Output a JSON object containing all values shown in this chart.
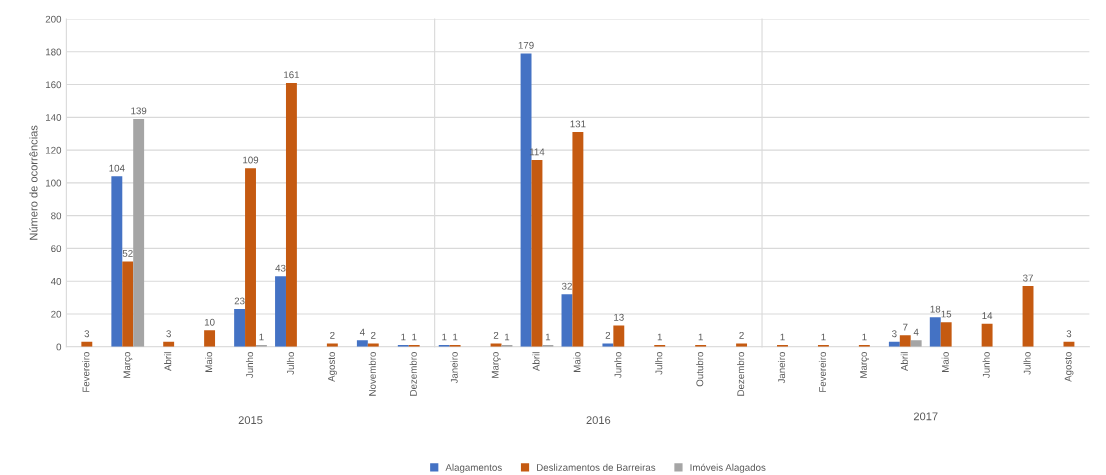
{
  "chart_data": [
    {
      "type": "bar",
      "ylabel": "Número de ocorrências",
      "xlabel": "2015",
      "categories": [
        "Fevereiro",
        "Março",
        "Abril",
        "Maio",
        "Junho",
        "Julho",
        "Agosto",
        "Novembro",
        "Dezembro"
      ],
      "series": [
        {
          "color": "#4472c4",
          "values": [
            null,
            104,
            null,
            null,
            23,
            43,
            null,
            4,
            1
          ]
        },
        {
          "color": "#c55a11",
          "values": [
            3,
            52,
            3,
            10,
            109,
            161,
            2,
            2,
            1
          ]
        },
        {
          "color": "#a5a5a5",
          "values": [
            null,
            139,
            null,
            null,
            1,
            null,
            null,
            null,
            null
          ]
        }
      ],
      "ylim": [
        0,
        200
      ],
      "yticks": [
        0,
        20,
        40,
        60,
        80,
        100,
        120,
        140,
        160,
        180,
        200
      ],
      "grid": "y",
      "data_labels": true
    },
    {
      "type": "bar",
      "xlabel": "2016",
      "categories": [
        "Janeiro",
        "Março",
        "Abril",
        "Maio",
        "Junho",
        "Julho",
        "Outubro",
        "Dezembro"
      ],
      "series": [
        {
          "name": "Alagamentos",
          "color": "#4472c4",
          "values": [
            1,
            null,
            179,
            32,
            2,
            null,
            null,
            null
          ]
        },
        {
          "name": "Deslizamentos de Barreiras",
          "color": "#c55a11",
          "values": [
            1,
            2,
            114,
            131,
            13,
            1,
            1,
            2
          ]
        },
        {
          "name": "Imóveis Alagados",
          "color": "#a5a5a5",
          "values": [
            null,
            1,
            1,
            null,
            null,
            null,
            null,
            null
          ]
        }
      ],
      "ylim": [
        0,
        200
      ],
      "yticks": [
        0,
        20,
        40,
        60,
        80,
        100,
        120,
        140,
        160,
        180,
        200
      ],
      "grid": "y",
      "data_labels": true,
      "legend": "bottom",
      "tick_labels": "x"
    },
    {
      "type": "bar",
      "xlabel": "2017",
      "categories": [
        "Janeiro",
        "Fevereiro",
        "Março",
        "Abril",
        "Maio",
        "Junho",
        "Julho",
        "Agosto"
      ],
      "series": [
        {
          "color": "#4472c4",
          "values": [
            null,
            null,
            null,
            3,
            18,
            null,
            null,
            null
          ]
        },
        {
          "color": "#c55a11",
          "values": [
            1,
            1,
            1,
            7,
            15,
            14,
            37,
            3
          ]
        },
        {
          "color": "#a5a5a5",
          "values": [
            null,
            null,
            null,
            4,
            null,
            null,
            null,
            null
          ]
        }
      ],
      "ylim": [
        0,
        200
      ],
      "yticks": [
        0,
        20,
        40,
        60,
        80,
        100,
        120,
        140,
        160,
        180,
        200
      ],
      "grid": "y",
      "data_labels": true,
      "tick_labels": "x"
    }
  ]
}
